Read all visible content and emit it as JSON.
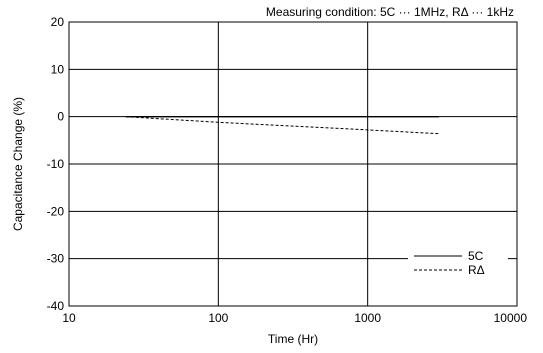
{
  "chart_data": {
    "type": "line",
    "title": "",
    "annotation": "Measuring condition: 5C ··· 1MHz, RΔ ··· 1kHz",
    "xlabel": "Time (Hr)",
    "ylabel": "Capacitance Change (%)",
    "xscale": "log",
    "xlim": [
      10,
      10000
    ],
    "ylim": [
      -40,
      20
    ],
    "x_ticks": [
      10,
      100,
      1000,
      10000
    ],
    "x_tick_labels": [
      "10",
      "100",
      "1000",
      "10000"
    ],
    "y_ticks": [
      20,
      10,
      0,
      -10,
      -20,
      -30,
      -40
    ],
    "y_tick_labels": [
      "20",
      "10",
      "0",
      "-10",
      "-20",
      "-30",
      "-40"
    ],
    "grid": true,
    "legend_position": "bottom-right",
    "series": [
      {
        "name": "5C",
        "style": "solid",
        "x": [
          24,
          3000
        ],
        "y": [
          0,
          0
        ]
      },
      {
        "name": "RΔ",
        "style": "dashed",
        "x": [
          24,
          100,
          1000,
          3000
        ],
        "y": [
          0,
          -1.2,
          -2.8,
          -3.6
        ]
      }
    ]
  }
}
